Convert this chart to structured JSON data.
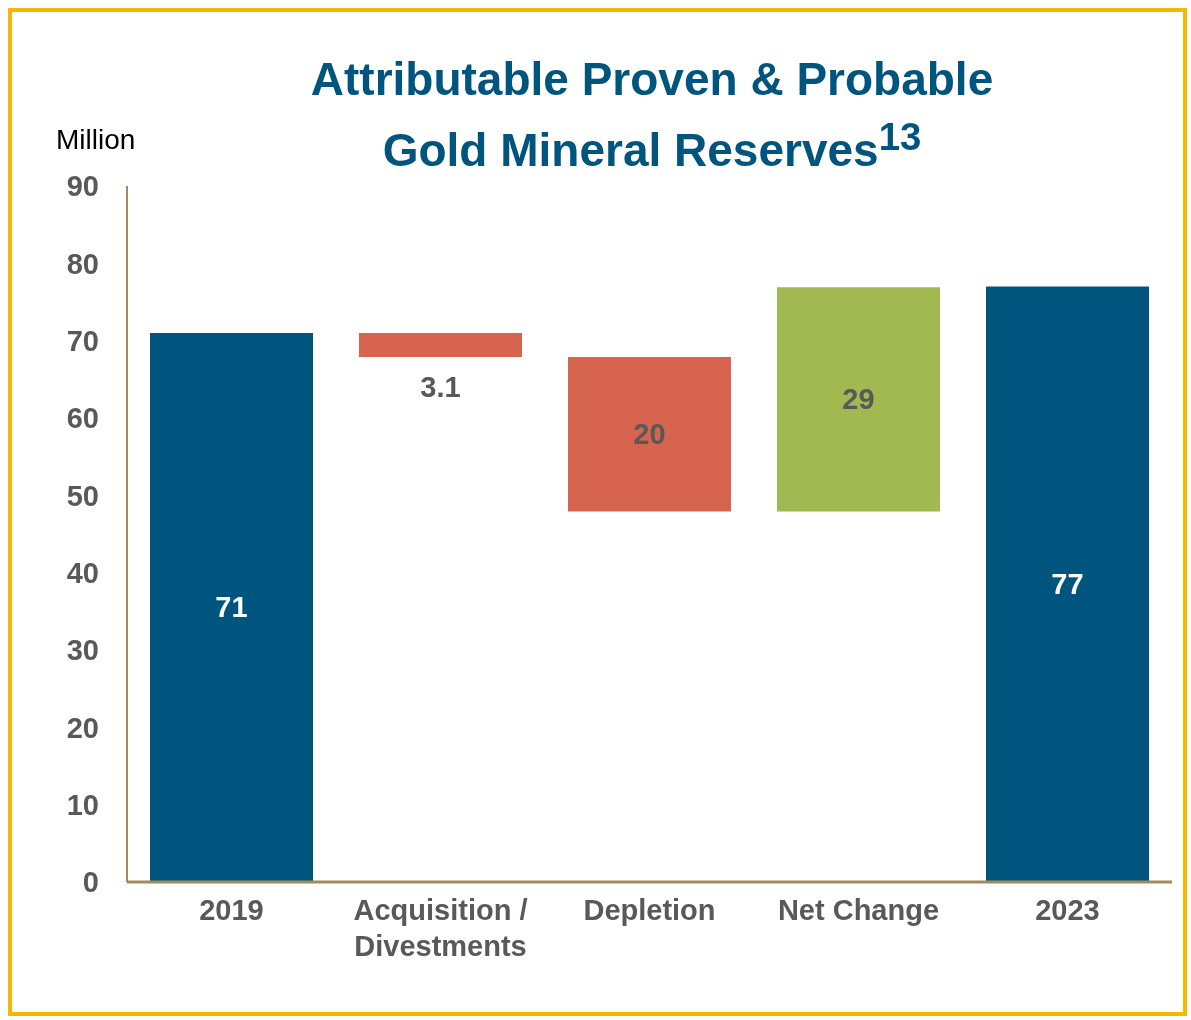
{
  "chart_data": {
    "type": "bar",
    "title": "Attributable Proven & Probable Gold Mineral Reserves$^{13}$",
    "ylabel": "Million",
    "categories": [
      "2019",
      "Acquisition / Divestments",
      "Depletion",
      "Net Change",
      "2023"
    ],
    "values": [
      71,
      -3.1,
      -20,
      29,
      77
    ],
    "base": [
      0,
      71,
      67.9,
      47.9,
      0
    ],
    "colors": [
      "#00557f",
      "#d6644e",
      "#d6644e",
      "#a2b952",
      "#00557f"
    ],
    "value_labels": [
      "71",
      "3.1",
      "20",
      "29",
      "77"
    ],
    "ylim": [
      0,
      90
    ],
    "yticks": [
      0,
      10,
      20,
      30,
      40,
      50,
      60,
      70,
      80,
      90
    ],
    "grid": false,
    "legend": false
  }
}
